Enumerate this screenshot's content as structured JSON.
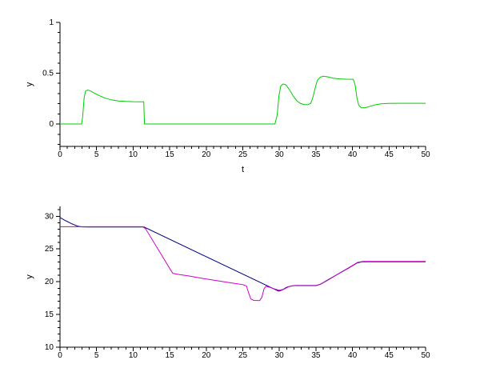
{
  "window": {
    "background": "#ffffff",
    "axis_color": "#000000",
    "text_color": "#000000"
  },
  "chart_data": [
    {
      "type": "line",
      "title": "",
      "xlabel": "t",
      "ylabel": "y",
      "xlim": [
        0,
        50
      ],
      "ylim": [
        -0.22,
        1.0
      ],
      "grid": false,
      "legend_position": "none",
      "xticks": [
        0,
        5,
        10,
        15,
        20,
        25,
        30,
        35,
        40,
        45,
        50
      ],
      "xtick_labels": [
        "0",
        "5",
        "10",
        "15",
        "20",
        "25",
        "30",
        "35",
        "40",
        "45",
        "50"
      ],
      "yticks": [
        0,
        0.5,
        1
      ],
      "ytick_labels": [
        "0",
        "0.5",
        "1"
      ],
      "x_minor_step": 1,
      "y_minor_step": 0.1,
      "series": [
        {
          "name": "green-signal",
          "color": "#00cc00",
          "points": [
            [
              0,
              0
            ],
            [
              2.95,
              0
            ],
            [
              3.1,
              0.07
            ],
            [
              3.3,
              0.26
            ],
            [
              3.5,
              0.325
            ],
            [
              3.8,
              0.335
            ],
            [
              4.2,
              0.325
            ],
            [
              4.8,
              0.3
            ],
            [
              5.5,
              0.275
            ],
            [
              6.2,
              0.255
            ],
            [
              7,
              0.238
            ],
            [
              8,
              0.227
            ],
            [
              9,
              0.222
            ],
            [
              10,
              0.22
            ],
            [
              11.45,
              0.219
            ],
            [
              11.55,
              0
            ],
            [
              29.4,
              0
            ],
            [
              29.7,
              0.09
            ],
            [
              29.95,
              0.28
            ],
            [
              30.2,
              0.375
            ],
            [
              30.5,
              0.395
            ],
            [
              30.9,
              0.385
            ],
            [
              31.4,
              0.335
            ],
            [
              31.9,
              0.275
            ],
            [
              32.4,
              0.228
            ],
            [
              32.9,
              0.202
            ],
            [
              33.4,
              0.192
            ],
            [
              33.9,
              0.19
            ],
            [
              34.3,
              0.205
            ],
            [
              34.6,
              0.265
            ],
            [
              34.9,
              0.355
            ],
            [
              35.2,
              0.43
            ],
            [
              35.6,
              0.462
            ],
            [
              36,
              0.47
            ],
            [
              36.6,
              0.465
            ],
            [
              37.3,
              0.452
            ],
            [
              38.2,
              0.444
            ],
            [
              39.2,
              0.441
            ],
            [
              40.1,
              0.44
            ],
            [
              40.35,
              0.39
            ],
            [
              40.6,
              0.26
            ],
            [
              40.85,
              0.185
            ],
            [
              41.2,
              0.16
            ],
            [
              41.7,
              0.16
            ],
            [
              42.3,
              0.172
            ],
            [
              43,
              0.188
            ],
            [
              43.8,
              0.198
            ],
            [
              44.8,
              0.203
            ],
            [
              46,
              0.204
            ],
            [
              50,
              0.204
            ]
          ]
        }
      ]
    },
    {
      "type": "line",
      "title": "",
      "xlabel": "",
      "ylabel": "y",
      "xlim": [
        0,
        50
      ],
      "ylim": [
        10,
        31.5
      ],
      "grid": false,
      "legend_position": "none",
      "xticks": [
        0,
        5,
        10,
        15,
        20,
        25,
        30,
        35,
        40,
        45,
        50
      ],
      "xtick_labels": [
        "0",
        "5",
        "10",
        "15",
        "20",
        "25",
        "30",
        "35",
        "40",
        "45",
        "50"
      ],
      "yticks": [
        10,
        15,
        20,
        25,
        30
      ],
      "ytick_labels": [
        "10",
        "15",
        "20",
        "25",
        "30"
      ],
      "x_minor_step": 1,
      "y_minor_step": 1,
      "series": [
        {
          "name": "blue-signal",
          "color": "#000080",
          "points": [
            [
              0,
              29.8
            ],
            [
              0.8,
              29.3
            ],
            [
              1.6,
              28.85
            ],
            [
              2.4,
              28.5
            ],
            [
              3,
              28.37
            ],
            [
              4,
              28.35
            ],
            [
              11.5,
              28.35
            ],
            [
              29.9,
              18.55
            ],
            [
              30.4,
              18.75
            ],
            [
              31,
              19.15
            ],
            [
              31.6,
              19.35
            ],
            [
              32.2,
              19.42
            ],
            [
              35,
              19.42
            ],
            [
              35.6,
              19.6
            ],
            [
              36.5,
              20.2
            ],
            [
              38,
              21.15
            ],
            [
              39.5,
              22.1
            ],
            [
              40.6,
              22.85
            ],
            [
              41.3,
              23.03
            ],
            [
              42.5,
              23.05
            ],
            [
              50,
              23.05
            ]
          ]
        },
        {
          "name": "magenta-signal",
          "color": "#cc00cc",
          "points": [
            [
              0,
              28.4
            ],
            [
              11.3,
              28.4
            ],
            [
              11.7,
              28.1
            ],
            [
              15.4,
              21.3
            ],
            [
              16,
              21.15
            ],
            [
              17.5,
              20.9
            ],
            [
              19.5,
              20.5
            ],
            [
              21.5,
              20.15
            ],
            [
              23.5,
              19.8
            ],
            [
              25,
              19.55
            ],
            [
              25.5,
              19.35
            ],
            [
              25.8,
              18.3
            ],
            [
              26.1,
              17.35
            ],
            [
              26.5,
              17.15
            ],
            [
              27.3,
              17.12
            ],
            [
              27.6,
              17.6
            ],
            [
              27.9,
              18.9
            ],
            [
              28.15,
              19.3
            ],
            [
              28.7,
              19.15
            ],
            [
              29.5,
              18.85
            ],
            [
              30,
              18.7
            ],
            [
              30.6,
              18.85
            ],
            [
              31.3,
              19.25
            ],
            [
              31.9,
              19.4
            ],
            [
              35,
              19.4
            ],
            [
              35.7,
              19.65
            ],
            [
              36.8,
              20.35
            ],
            [
              38.2,
              21.3
            ],
            [
              39.6,
              22.2
            ],
            [
              40.7,
              22.95
            ],
            [
              41.4,
              23.1
            ],
            [
              42.5,
              23.1
            ],
            [
              50,
              23.1
            ]
          ]
        }
      ]
    }
  ]
}
